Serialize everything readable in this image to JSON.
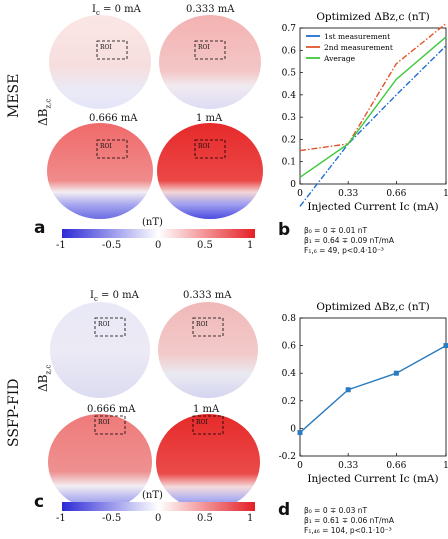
{
  "figure": {
    "top": {
      "row_title": "MESE",
      "delta_label": "ΔB",
      "delta_sub": "z,c",
      "panel_a_letter": "a",
      "panel_b_letter": "b",
      "map_labels": [
        "I",
        "0.333 mA",
        "0.666 mA",
        "1 mA"
      ],
      "first_label_sub": "c",
      "first_label_rest": " = 0 mA",
      "roi": "ROI",
      "colorbar_unit": "(nT)",
      "colorbar_ticks": [
        "-1",
        "-0.5",
        "0",
        "0.5",
        "1"
      ],
      "stats": {
        "beta0": "β₀ = 0 ∓ 0.01 nT",
        "beta1": "β₁ = 0.64 ∓ 0.09 nT/mA",
        "f": "F₁,₆ = 49, p<0.4·10⁻³"
      }
    },
    "bottom": {
      "row_title": "SSFP-FID",
      "delta_label": "ΔB",
      "delta_sub": "z,c",
      "panel_c_letter": "c",
      "panel_d_letter": "d",
      "map_labels": [
        "I",
        "0.333 mA",
        "0.666 mA",
        "1 mA"
      ],
      "first_label_sub": "c",
      "first_label_rest": " = 0 mA",
      "roi": "ROI",
      "colorbar_unit": "(nT)",
      "colorbar_ticks": [
        "-1",
        "-0.5",
        "0",
        "0.5",
        "1"
      ],
      "stats": {
        "beta0": "β₀ = 0 ∓ 0.03 nT",
        "beta1": "β₁ = 0.61 ∓ 0.06 nT/mA",
        "f": "F₁,₄₆ = 104, p<0.1·10⁻³"
      }
    }
  },
  "chart_data": [
    {
      "type": "line",
      "panel": "b",
      "title": "Optimized ΔBz,c (nT)",
      "xlabel": "Injected Current Ic (mA)",
      "ylabel": "",
      "xticks": [
        "0",
        "0.33",
        "0.66",
        "1"
      ],
      "yticks": [
        "0",
        "0.1",
        "0.2",
        "0.3",
        "0.4",
        "0.5",
        "0.6",
        "0.7"
      ],
      "xlim": [
        0,
        1
      ],
      "ylim": [
        0,
        0.7
      ],
      "legend_position": "top-left",
      "series": [
        {
          "name": "1st measurement",
          "color": "#1f6fd1",
          "dash": "dashdot",
          "x": [
            0,
            0.33,
            0.66,
            1
          ],
          "y": [
            -0.1,
            0.18,
            0.4,
            0.62
          ]
        },
        {
          "name": "2nd measurement",
          "color": "#e0552a",
          "dash": "dashdot",
          "x": [
            0,
            0.33,
            0.66,
            1
          ],
          "y": [
            0.15,
            0.18,
            0.54,
            0.72
          ]
        },
        {
          "name": "Average",
          "color": "#3cc93c",
          "dash": "solid",
          "x": [
            0,
            0.33,
            0.66,
            1
          ],
          "y": [
            0.03,
            0.18,
            0.47,
            0.66
          ]
        }
      ]
    },
    {
      "type": "line",
      "panel": "d",
      "title": "Optimized ΔBz,c (nT)",
      "xlabel": "Injected Current Ic (mA)",
      "ylabel": "",
      "xticks": [
        "0",
        "0.33",
        "0.66",
        "1"
      ],
      "yticks": [
        "-0.2",
        "0",
        "0.2",
        "0.4",
        "0.6",
        "0.8"
      ],
      "xlim": [
        0,
        1
      ],
      "ylim": [
        -0.2,
        0.8
      ],
      "series": [
        {
          "name": "",
          "color": "#2a7bbf",
          "x": [
            0,
            0.33,
            0.66,
            1
          ],
          "y": [
            -0.03,
            0.28,
            0.4,
            0.6
          ],
          "err": [
            0.01,
            0.01,
            0.01,
            0.015
          ]
        }
      ]
    }
  ],
  "colors": {
    "red": "#e41f25",
    "blue": "#2d2ad6"
  }
}
